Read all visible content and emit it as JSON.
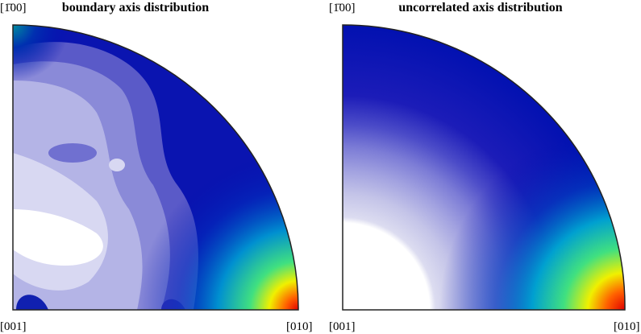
{
  "panels": [
    {
      "title": "boundary axis distribution",
      "labels": {
        "top": "[1̄00]",
        "bottom_left": "[001]",
        "bottom_right": "[010]"
      }
    },
    {
      "title": "uncorrelated axis distribution",
      "labels": {
        "top": "[1̄00]",
        "bottom_left": "[001]",
        "bottom_right": "[010]"
      }
    }
  ]
}
